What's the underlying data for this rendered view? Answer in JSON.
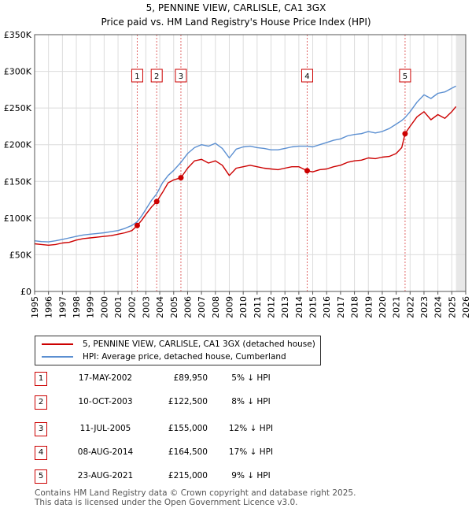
{
  "chart_data": {
    "type": "line",
    "title": "5, PENNINE VIEW, CARLISLE, CA1 3GX",
    "subtitle": "Price paid vs. HM Land Registry's House Price Index (HPI)",
    "xlim": [
      1995,
      2026
    ],
    "ylim": [
      0,
      350000
    ],
    "x_ticks": [
      "1995",
      "1996",
      "1997",
      "1998",
      "1999",
      "2000",
      "2001",
      "2002",
      "2003",
      "2004",
      "2005",
      "2006",
      "2007",
      "2008",
      "2009",
      "2010",
      "2011",
      "2012",
      "2013",
      "2014",
      "2015",
      "2016",
      "2017",
      "2018",
      "2019",
      "2020",
      "2021",
      "2022",
      "2023",
      "2024",
      "2025",
      "2026"
    ],
    "y_ticks": [
      {
        "value": 0,
        "label": "£0"
      },
      {
        "value": 50000,
        "label": "£50K"
      },
      {
        "value": 100000,
        "label": "£100K"
      },
      {
        "value": 150000,
        "label": "£150K"
      },
      {
        "value": 200000,
        "label": "£200K"
      },
      {
        "value": 250000,
        "label": "£250K"
      },
      {
        "value": 300000,
        "label": "£300K"
      },
      {
        "value": 350000,
        "label": "£350K"
      }
    ],
    "series": [
      {
        "name": "5, PENNINE VIEW, CARLISLE, CA1 3GX (detached house)",
        "color": "#cc0000",
        "x": [
          1995.0,
          1995.5,
          1996.0,
          1996.5,
          1997.0,
          1997.5,
          1998.0,
          1998.5,
          1999.0,
          1999.5,
          2000.0,
          2000.5,
          2001.0,
          2001.5,
          2002.0,
          2002.38,
          2002.7,
          2003.0,
          2003.4,
          2003.78,
          2004.2,
          2004.6,
          2005.0,
          2005.52,
          2006.0,
          2006.5,
          2007.0,
          2007.5,
          2008.0,
          2008.5,
          2009.0,
          2009.5,
          2010.0,
          2010.5,
          2011.0,
          2011.5,
          2012.0,
          2012.5,
          2013.0,
          2013.5,
          2014.0,
          2014.6,
          2015.0,
          2015.5,
          2016.0,
          2016.5,
          2017.0,
          2017.5,
          2018.0,
          2018.5,
          2019.0,
          2019.5,
          2020.0,
          2020.5,
          2021.0,
          2021.4,
          2021.64,
          2022.0,
          2022.5,
          2023.0,
          2023.5,
          2024.0,
          2024.5,
          2025.0,
          2025.3
        ],
        "values": [
          65000,
          64000,
          63000,
          64000,
          66000,
          67000,
          70000,
          72000,
          73000,
          74000,
          75000,
          76000,
          78000,
          80000,
          83000,
          89950,
          97000,
          105000,
          115000,
          122500,
          135000,
          148000,
          152000,
          155000,
          168000,
          178000,
          180000,
          175000,
          178000,
          172000,
          158000,
          168000,
          170000,
          172000,
          170000,
          168000,
          167000,
          166000,
          168000,
          170000,
          170000,
          164500,
          163000,
          166000,
          167000,
          170000,
          172000,
          176000,
          178000,
          179000,
          182000,
          181000,
          183000,
          184000,
          188000,
          196000,
          215000,
          225000,
          238000,
          245000,
          234000,
          241000,
          236000,
          245000,
          252000
        ]
      },
      {
        "name": "HPI: Average price, detached house, Cumberland",
        "color": "#5b8fd1",
        "x": [
          1995.0,
          1995.5,
          1996.0,
          1996.5,
          1997.0,
          1997.5,
          1998.0,
          1998.5,
          1999.0,
          1999.5,
          2000.0,
          2000.5,
          2001.0,
          2001.5,
          2002.0,
          2002.38,
          2002.7,
          2003.0,
          2003.4,
          2003.78,
          2004.2,
          2004.6,
          2005.0,
          2005.52,
          2006.0,
          2006.5,
          2007.0,
          2007.5,
          2008.0,
          2008.5,
          2009.0,
          2009.5,
          2010.0,
          2010.5,
          2011.0,
          2011.5,
          2012.0,
          2012.5,
          2013.0,
          2013.5,
          2014.0,
          2014.6,
          2015.0,
          2015.5,
          2016.0,
          2016.5,
          2017.0,
          2017.5,
          2018.0,
          2018.5,
          2019.0,
          2019.5,
          2020.0,
          2020.5,
          2021.0,
          2021.4,
          2021.64,
          2022.0,
          2022.5,
          2023.0,
          2023.5,
          2024.0,
          2024.5,
          2025.0,
          2025.3
        ],
        "values": [
          69000,
          68000,
          67500,
          69000,
          71000,
          73000,
          75000,
          77000,
          78000,
          79000,
          80000,
          81500,
          83000,
          86000,
          90000,
          95000,
          103000,
          112000,
          124000,
          133000,
          148000,
          158000,
          165000,
          176000,
          188000,
          196000,
          200000,
          198000,
          202000,
          195000,
          182000,
          194000,
          197000,
          198000,
          196000,
          195000,
          193000,
          193000,
          195000,
          197000,
          198000,
          198000,
          197000,
          200000,
          203000,
          206000,
          208000,
          212000,
          214000,
          215000,
          218000,
          216000,
          218000,
          222000,
          228000,
          233000,
          237000,
          245000,
          258000,
          268000,
          263000,
          270000,
          272000,
          277000,
          280000
        ]
      }
    ],
    "sales": [
      {
        "id": "1",
        "x": 2002.38,
        "price": 89950
      },
      {
        "id": "2",
        "x": 2003.78,
        "price": 122500
      },
      {
        "id": "3",
        "x": 2005.52,
        "price": 155000
      },
      {
        "id": "4",
        "x": 2014.6,
        "price": 164500
      },
      {
        "id": "5",
        "x": 2021.64,
        "price": 215000
      }
    ],
    "future_shading_from": 2025.3
  },
  "legend": {
    "property_label": "5, PENNINE VIEW, CARLISLE, CA1 3GX (detached house)",
    "hpi_label": "HPI: Average price, detached house, Cumberland"
  },
  "sales_table": [
    {
      "id": "1",
      "date": "17-MAY-2002",
      "price": "£89,950",
      "delta": "5% ↓ HPI"
    },
    {
      "id": "2",
      "date": "10-OCT-2003",
      "price": "£122,500",
      "delta": "8% ↓ HPI"
    },
    {
      "id": "3",
      "date": "11-JUL-2005",
      "price": "£155,000",
      "delta": "12% ↓ HPI"
    },
    {
      "id": "4",
      "date": "08-AUG-2014",
      "price": "£164,500",
      "delta": "17% ↓ HPI"
    },
    {
      "id": "5",
      "date": "23-AUG-2021",
      "price": "£215,000",
      "delta": "9% ↓ HPI"
    }
  ],
  "footer": {
    "line1": "Contains HM Land Registry data © Crown copyright and database right 2025.",
    "line2": "This data is licensed under the Open Government Licence v3.0."
  }
}
